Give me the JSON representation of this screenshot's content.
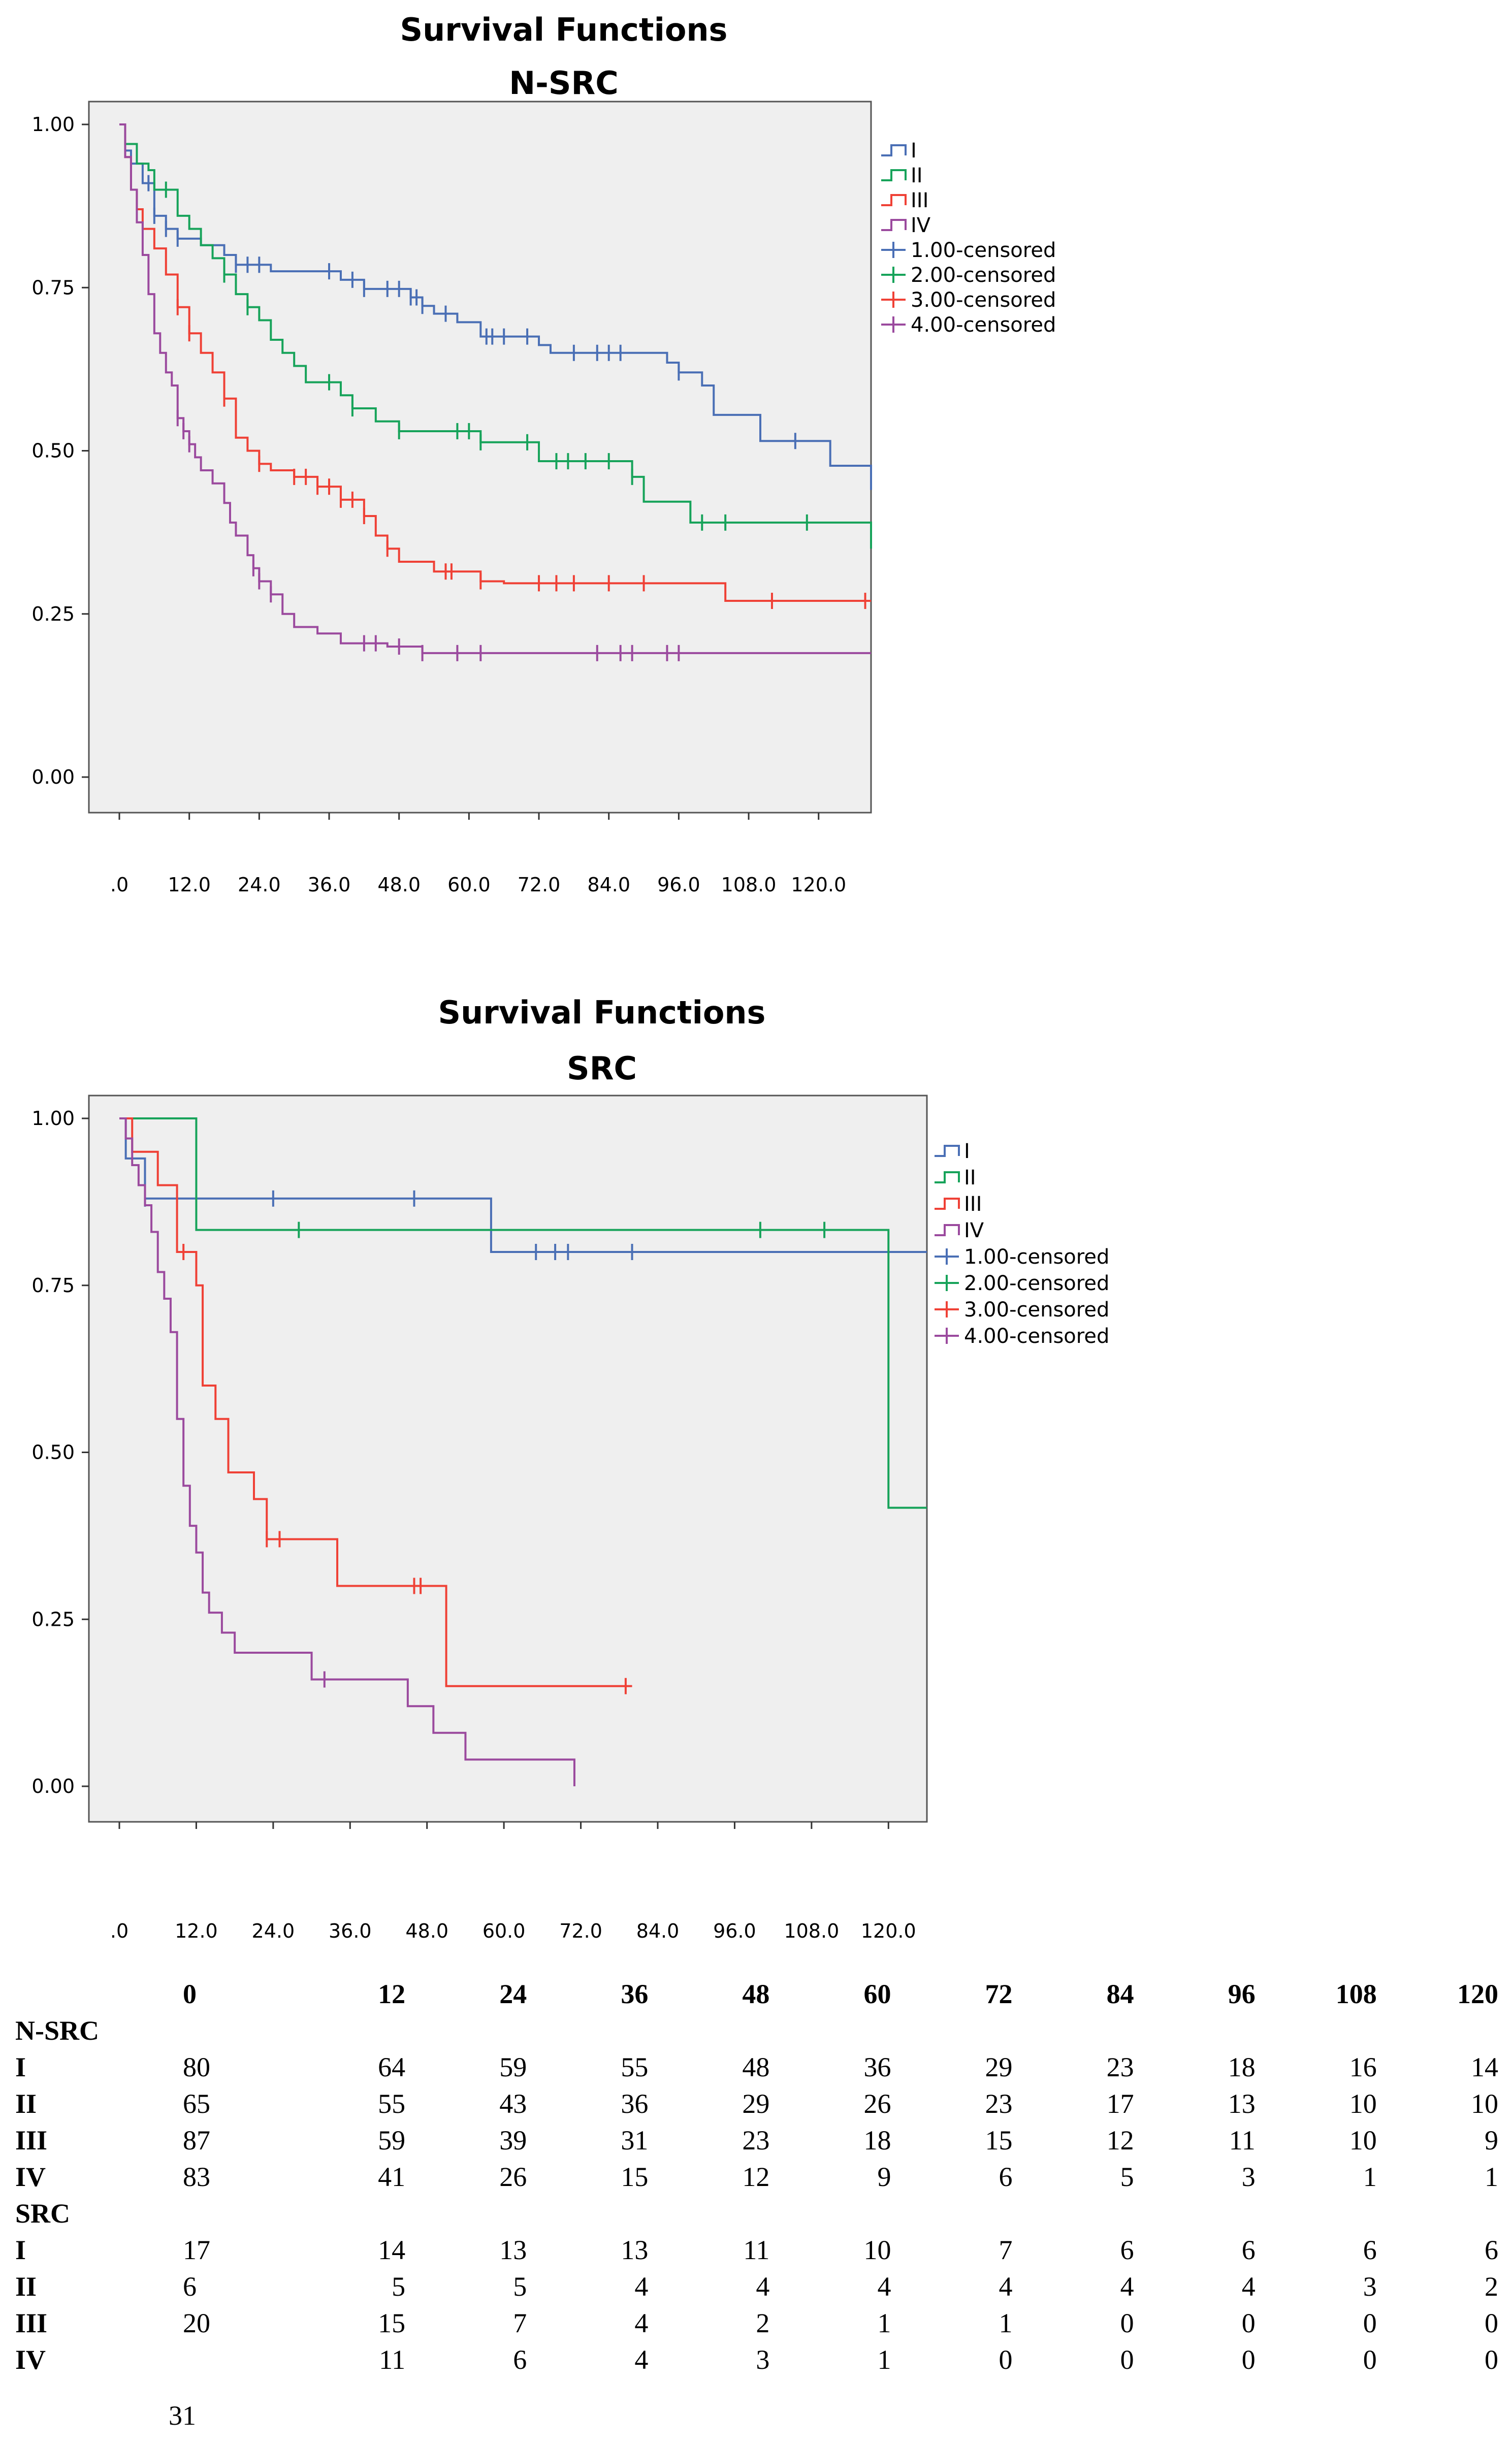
{
  "charts": [
    {
      "id": "nsrc",
      "title": "Survival Functions",
      "subtitle": "N-SRC",
      "xmax": 129,
      "ylim": [
        0,
        1
      ],
      "yticks": [
        "0.00",
        "0.25",
        "0.50",
        "0.75",
        "1.00"
      ],
      "xticks": [
        ".0",
        "12.0",
        "24.0",
        "36.0",
        "48.0",
        "60.0",
        "72.0",
        "84.0",
        "96.0",
        "108.0",
        "120.0"
      ],
      "legend": [
        "I",
        "II",
        "III",
        "IV",
        "1.00-censored",
        "2.00-censored",
        "3.00-censored",
        "4.00-censored"
      ],
      "series": [
        {
          "name": "I",
          "color": "#4a6fb5",
          "steps": [
            [
              0,
              1
            ],
            [
              1,
              0.96
            ],
            [
              2,
              0.94
            ],
            [
              4,
              0.91
            ],
            [
              6,
              0.86
            ],
            [
              8,
              0.84
            ],
            [
              10,
              0.825
            ],
            [
              14,
              0.815
            ],
            [
              18,
              0.8
            ],
            [
              20,
              0.785
            ],
            [
              26,
              0.775
            ],
            [
              38,
              0.762
            ],
            [
              42,
              0.748
            ],
            [
              50,
              0.735
            ],
            [
              52,
              0.722
            ],
            [
              54,
              0.71
            ],
            [
              58,
              0.697
            ],
            [
              62,
              0.675
            ],
            [
              72,
              0.662
            ],
            [
              74,
              0.65
            ],
            [
              94,
              0.635
            ],
            [
              96,
              0.62
            ],
            [
              100,
              0.6
            ],
            [
              102,
              0.555
            ],
            [
              110,
              0.515
            ],
            [
              122,
              0.477
            ],
            [
              129,
              0.44
            ]
          ],
          "censor": [
            5,
            6,
            8,
            10,
            20,
            22,
            24,
            36,
            40,
            42,
            46,
            48,
            50,
            51,
            52,
            56,
            63,
            64,
            66,
            70,
            78,
            82,
            84,
            86,
            96,
            116
          ]
        },
        {
          "name": "II",
          "color": "#17a35a",
          "steps": [
            [
              0,
              1
            ],
            [
              1,
              0.97
            ],
            [
              3,
              0.94
            ],
            [
              5,
              0.93
            ],
            [
              6,
              0.9
            ],
            [
              10,
              0.86
            ],
            [
              12,
              0.84
            ],
            [
              14,
              0.815
            ],
            [
              16,
              0.795
            ],
            [
              18,
              0.77
            ],
            [
              20,
              0.74
            ],
            [
              22,
              0.72
            ],
            [
              24,
              0.7
            ],
            [
              26,
              0.67
            ],
            [
              28,
              0.65
            ],
            [
              30,
              0.63
            ],
            [
              32,
              0.605
            ],
            [
              38,
              0.585
            ],
            [
              40,
              0.565
            ],
            [
              44,
              0.545
            ],
            [
              48,
              0.53
            ],
            [
              62,
              0.513
            ],
            [
              72,
              0.484
            ],
            [
              88,
              0.46
            ],
            [
              90,
              0.422
            ],
            [
              98,
              0.39
            ],
            [
              129,
              0.35
            ]
          ],
          "censor": [
            8,
            18,
            22,
            36,
            40,
            48,
            58,
            60,
            62,
            70,
            75,
            77,
            80,
            84,
            88,
            100,
            104,
            118
          ]
        },
        {
          "name": "III",
          "color": "#ef4136",
          "steps": [
            [
              0,
              1
            ],
            [
              1,
              0.95
            ],
            [
              2,
              0.9
            ],
            [
              3,
              0.87
            ],
            [
              4,
              0.84
            ],
            [
              6,
              0.81
            ],
            [
              8,
              0.77
            ],
            [
              10,
              0.72
            ],
            [
              12,
              0.68
            ],
            [
              14,
              0.65
            ],
            [
              16,
              0.62
            ],
            [
              18,
              0.58
            ],
            [
              20,
              0.52
            ],
            [
              22,
              0.5
            ],
            [
              24,
              0.48
            ],
            [
              26,
              0.47
            ],
            [
              30,
              0.46
            ],
            [
              34,
              0.445
            ],
            [
              38,
              0.425
            ],
            [
              42,
              0.4
            ],
            [
              44,
              0.37
            ],
            [
              46,
              0.35
            ],
            [
              48,
              0.33
            ],
            [
              54,
              0.315
            ],
            [
              62,
              0.3
            ],
            [
              66,
              0.297
            ],
            [
              84,
              0.297
            ],
            [
              104,
              0.27
            ],
            [
              129,
              0.27
            ]
          ],
          "censor": [
            10,
            12,
            18,
            24,
            30,
            32,
            34,
            36,
            38,
            40,
            42,
            46,
            56,
            57,
            62,
            72,
            75,
            78,
            84,
            90,
            112,
            128
          ]
        },
        {
          "name": "IV",
          "color": "#9b4a9e",
          "steps": [
            [
              0,
              1
            ],
            [
              1,
              0.95
            ],
            [
              2,
              0.9
            ],
            [
              3,
              0.85
            ],
            [
              4,
              0.8
            ],
            [
              5,
              0.74
            ],
            [
              6,
              0.68
            ],
            [
              7,
              0.65
            ],
            [
              8,
              0.62
            ],
            [
              9,
              0.6
            ],
            [
              10,
              0.55
            ],
            [
              11,
              0.53
            ],
            [
              12,
              0.51
            ],
            [
              13,
              0.49
            ],
            [
              14,
              0.47
            ],
            [
              16,
              0.45
            ],
            [
              18,
              0.42
            ],
            [
              19,
              0.39
            ],
            [
              20,
              0.37
            ],
            [
              22,
              0.34
            ],
            [
              23,
              0.32
            ],
            [
              24,
              0.3
            ],
            [
              26,
              0.28
            ],
            [
              28,
              0.25
            ],
            [
              30,
              0.23
            ],
            [
              34,
              0.22
            ],
            [
              38,
              0.205
            ],
            [
              46,
              0.2
            ],
            [
              52,
              0.19
            ],
            [
              129,
              0.19
            ]
          ],
          "censor": [
            10,
            11,
            12,
            23,
            24,
            26,
            42,
            44,
            48,
            52,
            58,
            62,
            82,
            86,
            88,
            94,
            96
          ]
        }
      ]
    },
    {
      "id": "src",
      "title": "Survival Functions",
      "subtitle": "SRC",
      "xmax": 126,
      "ylim": [
        0,
        1
      ],
      "yticks": [
        "0.00",
        "0.25",
        "0.50",
        "0.75",
        "1.00"
      ],
      "xticks": [
        ".0",
        "12.0",
        "24.0",
        "36.0",
        "48.0",
        "60.0",
        "72.0",
        "84.0",
        "96.0",
        "108.0",
        "120.0"
      ],
      "legend": [
        "I",
        "II",
        "III",
        "IV",
        "1.00-censored",
        "2.00-censored",
        "3.00-censored",
        "4.00-censored"
      ],
      "series": [
        {
          "name": "I",
          "color": "#4a6fb5",
          "steps": [
            [
              0,
              1
            ],
            [
              1,
              0.94
            ],
            [
              4,
              0.88
            ],
            [
              58,
              0.8
            ],
            [
              126,
              0.8
            ]
          ],
          "censor": [
            4,
            24,
            46,
            65,
            68,
            70,
            80
          ]
        },
        {
          "name": "II",
          "color": "#17a35a",
          "steps": [
            [
              0,
              1
            ],
            [
              12,
              0.833
            ],
            [
              120,
              0.417
            ],
            [
              126,
              0.417
            ]
          ],
          "censor": [
            28,
            100,
            110
          ]
        },
        {
          "name": "III",
          "color": "#ef4136",
          "steps": [
            [
              0,
              1
            ],
            [
              2,
              0.95
            ],
            [
              6,
              0.9
            ],
            [
              9,
              0.8
            ],
            [
              12,
              0.75
            ],
            [
              13,
              0.6
            ],
            [
              15,
              0.55
            ],
            [
              17,
              0.47
            ],
            [
              21,
              0.43
            ],
            [
              23,
              0.37
            ],
            [
              34,
              0.3
            ],
            [
              51,
              0.15
            ],
            [
              80,
              0.15
            ]
          ],
          "censor": [
            10,
            23,
            25,
            46,
            47,
            79
          ]
        },
        {
          "name": "IV",
          "color": "#9b4a9e",
          "steps": [
            [
              0,
              1
            ],
            [
              1,
              0.97
            ],
            [
              2,
              0.93
            ],
            [
              3,
              0.9
            ],
            [
              4,
              0.87
            ],
            [
              5,
              0.83
            ],
            [
              6,
              0.77
            ],
            [
              7,
              0.73
            ],
            [
              8,
              0.68
            ],
            [
              9,
              0.55
            ],
            [
              10,
              0.45
            ],
            [
              11,
              0.39
            ],
            [
              12,
              0.35
            ],
            [
              13,
              0.29
            ],
            [
              14,
              0.26
            ],
            [
              16,
              0.23
            ],
            [
              18,
              0.2
            ],
            [
              30,
              0.16
            ],
            [
              45,
              0.12
            ],
            [
              49,
              0.08
            ],
            [
              54,
              0.04
            ],
            [
              71,
              0.0
            ]
          ],
          "censor": [
            32
          ]
        }
      ]
    }
  ],
  "risk_table": {
    "headers": [
      "0",
      "12",
      "24",
      "36",
      "48",
      "60",
      "72",
      "84",
      "96",
      "108",
      "120"
    ],
    "groups": [
      {
        "name": "N-SRC",
        "rows": [
          {
            "label": "I",
            "values": [
              "80",
              "64",
              "59",
              "55",
              "48",
              "36",
              "29",
              "23",
              "18",
              "16",
              "14"
            ]
          },
          {
            "label": "II",
            "values": [
              "65",
              "55",
              "43",
              "36",
              "29",
              "26",
              "23",
              "17",
              "13",
              "10",
              "10"
            ]
          },
          {
            "label": "III",
            "values": [
              "87",
              "59",
              "39",
              "31",
              "23",
              "18",
              "15",
              "12",
              "11",
              "10",
              "9"
            ]
          },
          {
            "label": "IV",
            "values": [
              "83",
              "41",
              "26",
              "15",
              "12",
              "9",
              "6",
              "5",
              "3",
              "1",
              "1"
            ]
          }
        ]
      },
      {
        "name": "SRC",
        "rows": [
          {
            "label": "I",
            "values": [
              "17",
              "14",
              "13",
              "13",
              "11",
              "10",
              "7",
              "6",
              "6",
              "6",
              "6"
            ]
          },
          {
            "label": "II",
            "values": [
              "6",
              "5",
              "5",
              "4",
              "4",
              "4",
              "4",
              "4",
              "4",
              "3",
              "2"
            ]
          },
          {
            "label": "III",
            "values": [
              "20",
              "15",
              "7",
              "4",
              "2",
              "1",
              "1",
              "0",
              "0",
              "0",
              "0"
            ]
          },
          {
            "label": "IV",
            "values": [
              "",
              "11",
              "6",
              "4",
              "3",
              "1",
              "0",
              "0",
              "0",
              "0",
              "0"
            ]
          }
        ]
      }
    ],
    "extra_value": "31"
  }
}
